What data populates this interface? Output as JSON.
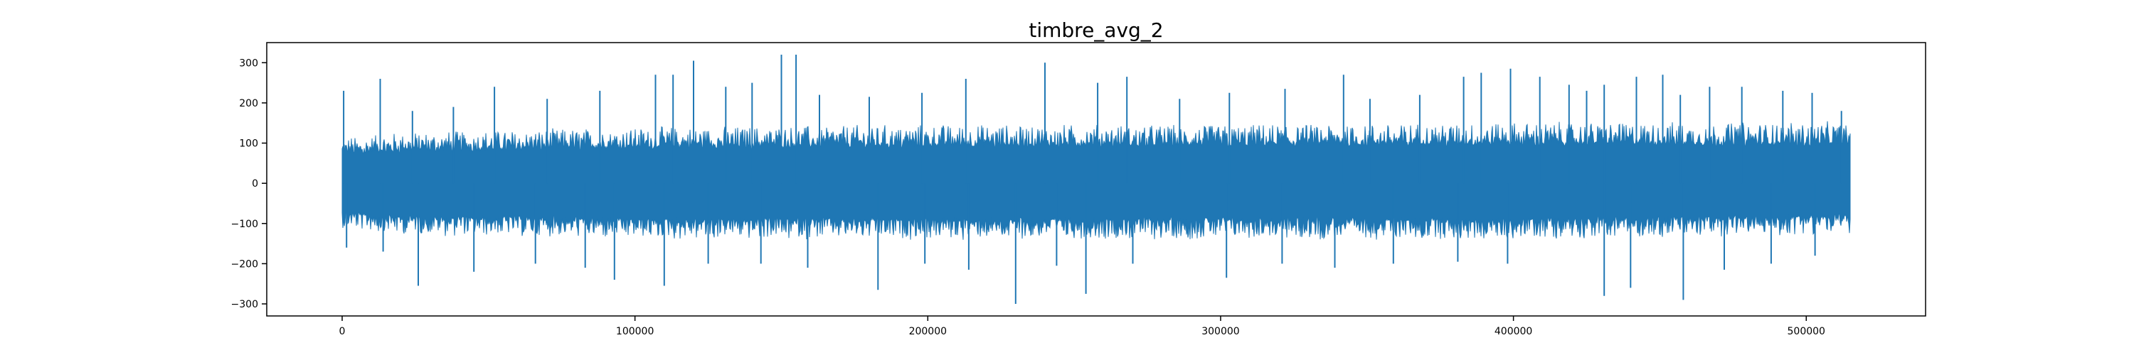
{
  "chart_data": {
    "type": "line",
    "title": "timbre_avg_2",
    "xlabel": "",
    "ylabel": "",
    "xlim": [
      -25750,
      540750
    ],
    "ylim": [
      -330,
      350
    ],
    "x_range": [
      0,
      515000
    ],
    "xticks": [
      0,
      100000,
      200000,
      300000,
      400000,
      500000
    ],
    "xtick_labels": [
      "0",
      "100000",
      "200000",
      "300000",
      "400000",
      "500000"
    ],
    "yticks": [
      -300,
      -200,
      -100,
      0,
      100,
      200,
      300
    ],
    "ytick_labels": [
      "−300",
      "−200",
      "−100",
      "0",
      "100",
      "200",
      "300"
    ],
    "grid": false,
    "series": [
      {
        "color": "#1f77b4",
        "band_upper": [
          [
            0,
            90
          ],
          [
            20000,
            100
          ],
          [
            100000,
            110
          ],
          [
            200000,
            115
          ],
          [
            300000,
            115
          ],
          [
            400000,
            120
          ],
          [
            515000,
            120
          ]
        ],
        "band_lower": [
          [
            0,
            -90
          ],
          [
            20000,
            -100
          ],
          [
            100000,
            -110
          ],
          [
            200000,
            -110
          ],
          [
            300000,
            -110
          ],
          [
            400000,
            -110
          ],
          [
            515000,
            -100
          ]
        ],
        "peaks": [
          [
            500,
            230
          ],
          [
            13000,
            260
          ],
          [
            24000,
            180
          ],
          [
            38000,
            190
          ],
          [
            52000,
            240
          ],
          [
            70000,
            210
          ],
          [
            88000,
            230
          ],
          [
            107000,
            270
          ],
          [
            113000,
            270
          ],
          [
            120000,
            305
          ],
          [
            131000,
            240
          ],
          [
            140000,
            250
          ],
          [
            150000,
            320
          ],
          [
            155000,
            320
          ],
          [
            163000,
            220
          ],
          [
            180000,
            215
          ],
          [
            198000,
            225
          ],
          [
            213000,
            260
          ],
          [
            240000,
            300
          ],
          [
            258000,
            250
          ],
          [
            268000,
            265
          ],
          [
            286000,
            210
          ],
          [
            303000,
            225
          ],
          [
            322000,
            235
          ],
          [
            342000,
            270
          ],
          [
            351000,
            210
          ],
          [
            368000,
            220
          ],
          [
            383000,
            265
          ],
          [
            389000,
            275
          ],
          [
            399000,
            285
          ],
          [
            409000,
            265
          ],
          [
            419000,
            245
          ],
          [
            425000,
            230
          ],
          [
            431000,
            245
          ],
          [
            442000,
            265
          ],
          [
            451000,
            270
          ],
          [
            457000,
            220
          ],
          [
            467000,
            240
          ],
          [
            478000,
            240
          ],
          [
            492000,
            230
          ],
          [
            502000,
            225
          ],
          [
            512000,
            180
          ]
        ],
        "troughs": [
          [
            1500,
            -160
          ],
          [
            14000,
            -170
          ],
          [
            26000,
            -255
          ],
          [
            45000,
            -220
          ],
          [
            66000,
            -200
          ],
          [
            83000,
            -210
          ],
          [
            93000,
            -240
          ],
          [
            110000,
            -255
          ],
          [
            125000,
            -200
          ],
          [
            143000,
            -200
          ],
          [
            159000,
            -210
          ],
          [
            183000,
            -265
          ],
          [
            199000,
            -200
          ],
          [
            214000,
            -215
          ],
          [
            230000,
            -300
          ],
          [
            244000,
            -205
          ],
          [
            254000,
            -275
          ],
          [
            270000,
            -200
          ],
          [
            302000,
            -235
          ],
          [
            321000,
            -200
          ],
          [
            339000,
            -210
          ],
          [
            359000,
            -200
          ],
          [
            381000,
            -195
          ],
          [
            398000,
            -200
          ],
          [
            431000,
            -280
          ],
          [
            440000,
            -260
          ],
          [
            458000,
            -290
          ],
          [
            472000,
            -215
          ],
          [
            488000,
            -200
          ],
          [
            503000,
            -180
          ]
        ]
      }
    ]
  }
}
